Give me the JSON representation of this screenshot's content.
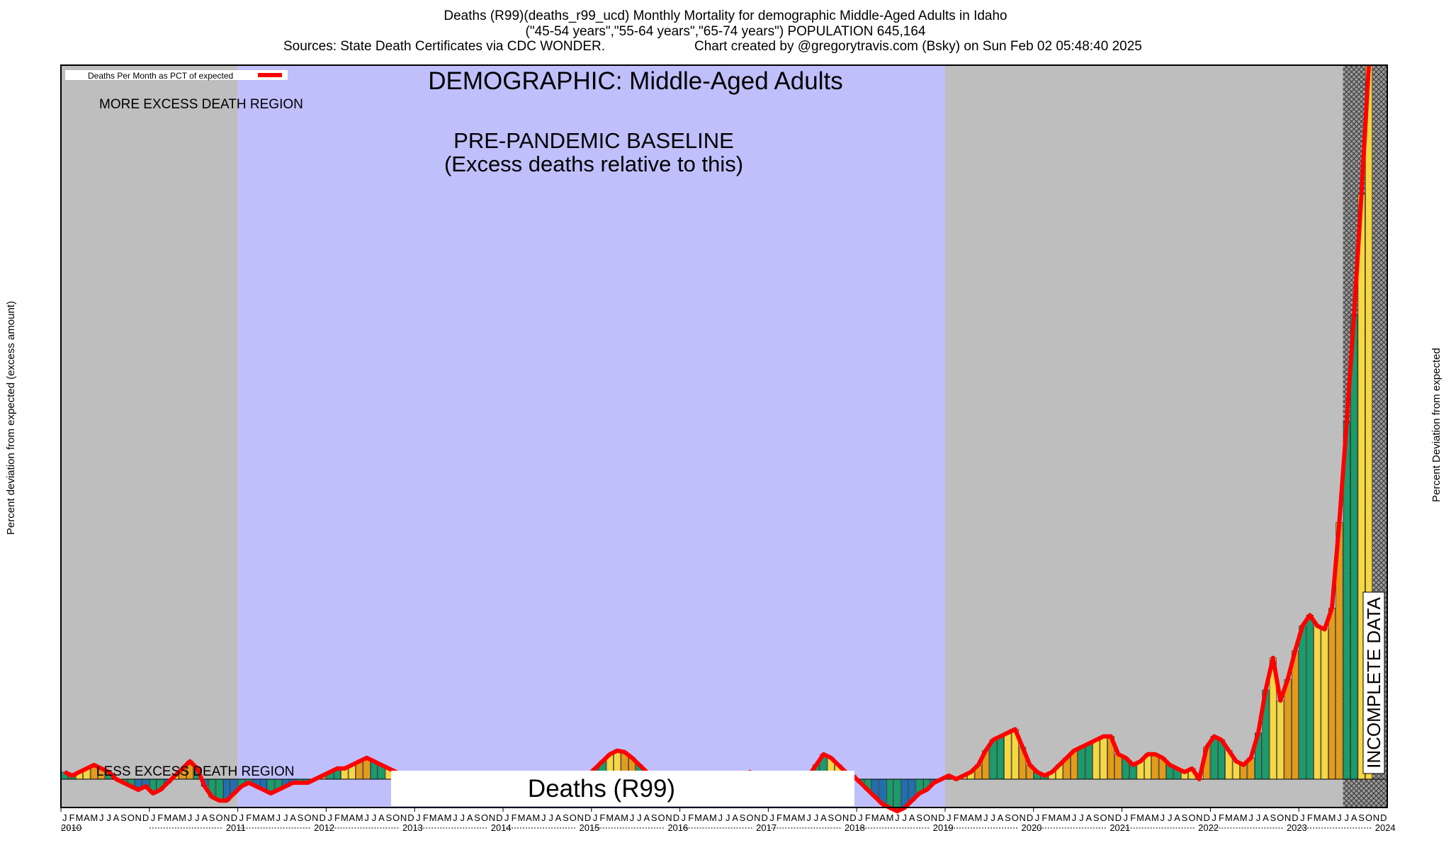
{
  "header": {
    "title_line1": "Deaths (R99)(deaths_r99_ucd) Monthly Mortality for demographic Middle-Aged Adults in Idaho",
    "title_line2": "(\"45-54 years\",\"55-64 years\",\"65-74 years\") POPULATION 645,164",
    "sources": "Sources: State Death Certificates via CDC WONDER.",
    "credit": "Chart created by @gregorytravis.com (Bsky) on Sun Feb 02 05:48:40 2025"
  },
  "chart_data": {
    "type": "bar",
    "title": "DEMOGRAPHIC: Middle-Aged Adults",
    "ylabel_left": "Percent deviation from expected (excess amount)",
    "ylabel_right": "Percent Deviation from expected",
    "legend": {
      "label": "Deaths Per Month as PCT of expected",
      "line_color": "#ff0000",
      "placement": "top-left"
    },
    "annotations": {
      "more_excess": "MORE EXCESS DEATH REGION",
      "less_excess": "LESS EXCESS DEATH REGION",
      "baseline_line1": "PRE-PANDEMIC BASELINE",
      "baseline_line2": "(Excess deaths relative to this)",
      "incomplete": "INCOMPLETE DATA",
      "cause_box": "Deaths (R99)"
    },
    "start_year": 2010,
    "month_letters": [
      "J",
      "F",
      "M",
      "A",
      "M",
      "J",
      "J",
      "A",
      "S",
      "O",
      "N",
      "D"
    ],
    "years": [
      "2010",
      "2011",
      "2012",
      "2013",
      "2014",
      "2015",
      "2016",
      "2017",
      "2018",
      "2019",
      "2020",
      "2021",
      "2022",
      "2023",
      "2024"
    ],
    "regions": {
      "baseline_start": "2012-01",
      "baseline_end": "2019-12",
      "incomplete_start": "2024-07"
    },
    "ylim": [
      -3,
      100
    ],
    "values": [
      1,
      0.5,
      1,
      1.5,
      2,
      1.5,
      1,
      0,
      -0.5,
      -1,
      -1.5,
      -1,
      -2,
      -1.5,
      -0.5,
      0.5,
      1.5,
      2.5,
      1.5,
      -1,
      -2.5,
      -3,
      -3,
      -2,
      -1,
      -0.5,
      -1,
      -1.5,
      -2,
      -1.5,
      -1,
      -0.5,
      -0.5,
      -0.5,
      0,
      0.5,
      1,
      1.5,
      1.5,
      2,
      2.5,
      3,
      2.5,
      2,
      1.5,
      1,
      0.5,
      0,
      -0.5,
      -0.5,
      -0.5,
      0,
      0,
      0,
      0,
      -0.5,
      -0.5,
      0,
      0,
      0,
      0,
      0,
      0,
      0,
      0.5,
      0.5,
      0.5,
      0.5,
      0,
      0,
      0,
      0.5,
      1.5,
      2.5,
      3.5,
      4,
      3.8,
      3,
      2,
      1,
      0.5,
      0,
      0,
      0,
      0,
      0,
      0,
      0,
      0,
      0,
      0,
      0,
      0.5,
      1,
      0.5,
      0,
      0,
      0,
      0,
      0,
      0,
      0.5,
      2,
      3.5,
      3,
      2,
      1,
      0.5,
      -0.5,
      -1.5,
      -2.5,
      -3.5,
      -4,
      -4.5,
      -4,
      -3,
      -2,
      -1.5,
      -0.5,
      0,
      0.5,
      0,
      0.5,
      1,
      2,
      4,
      5.5,
      6,
      6.5,
      7,
      4.5,
      2,
      1,
      0.5,
      1,
      2,
      3,
      4,
      4.5,
      5,
      5.5,
      6,
      6,
      3.5,
      3,
      2,
      2.5,
      3.5,
      3.5,
      3,
      2,
      1.5,
      1,
      1.5,
      0,
      4.5,
      6,
      5.5,
      4,
      2.5,
      2,
      3,
      6.5,
      12.5,
      17,
      11,
      14,
      18,
      21.5,
      23,
      21.5,
      21,
      24,
      36,
      50,
      65,
      82,
      100
    ]
  }
}
